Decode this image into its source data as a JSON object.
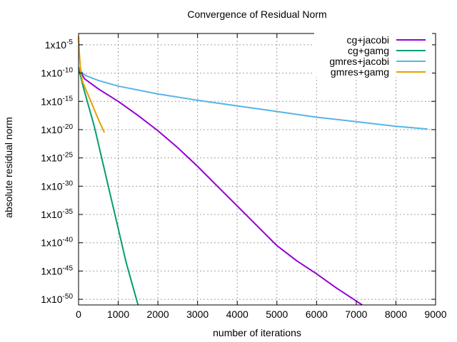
{
  "chart_data": {
    "type": "line",
    "title": "Convergence of Residual Norm",
    "xlabel": "number of iterations",
    "ylabel": "absolute residual norm",
    "xlim": [
      0,
      9000
    ],
    "ylim_exponent": [
      -51,
      -3
    ],
    "y_scale": "log10",
    "x_ticks": [
      {
        "value": 0,
        "label": "0"
      },
      {
        "value": 1000,
        "label": "1000"
      },
      {
        "value": 2000,
        "label": "2000"
      },
      {
        "value": 3000,
        "label": "3000"
      },
      {
        "value": 4000,
        "label": "4000"
      },
      {
        "value": 5000,
        "label": "5000"
      },
      {
        "value": 6000,
        "label": "6000"
      },
      {
        "value": 7000,
        "label": "7000"
      },
      {
        "value": 8000,
        "label": "8000"
      },
      {
        "value": 9000,
        "label": "9000"
      }
    ],
    "y_ticks": [
      {
        "exp": -5,
        "base": "1x10",
        "sup": "-5"
      },
      {
        "exp": -10,
        "base": "1x10",
        "sup": "-10"
      },
      {
        "exp": -15,
        "base": "1x10",
        "sup": "-15"
      },
      {
        "exp": -20,
        "base": "1x10",
        "sup": "-20"
      },
      {
        "exp": -25,
        "base": "1x10",
        "sup": "-25"
      },
      {
        "exp": -30,
        "base": "1x10",
        "sup": "-30"
      },
      {
        "exp": -35,
        "base": "1x10",
        "sup": "-35"
      },
      {
        "exp": -40,
        "base": "1x10",
        "sup": "-40"
      },
      {
        "exp": -45,
        "base": "1x10",
        "sup": "-45"
      },
      {
        "exp": -50,
        "base": "1x10",
        "sup": "-50"
      }
    ],
    "grid": true,
    "legend_position": "top-right",
    "series": [
      {
        "name": "cg+jacobi",
        "color": "#9400d3",
        "points": [
          [
            0,
            -9
          ],
          [
            150,
            -11
          ],
          [
            500,
            -12.8
          ],
          [
            1000,
            -15
          ],
          [
            1500,
            -17.5
          ],
          [
            2000,
            -20.2
          ],
          [
            2500,
            -23.2
          ],
          [
            3000,
            -26.5
          ],
          [
            3500,
            -30
          ],
          [
            4000,
            -33.5
          ],
          [
            4500,
            -37
          ],
          [
            5000,
            -40.5
          ],
          [
            5500,
            -43.2
          ],
          [
            6000,
            -45.5
          ],
          [
            6500,
            -48
          ],
          [
            7000,
            -50.3
          ],
          [
            7150,
            -51
          ]
        ]
      },
      {
        "name": "cg+gamg",
        "color": "#009e73",
        "points": [
          [
            0,
            -9
          ],
          [
            100,
            -12
          ],
          [
            200,
            -14.5
          ],
          [
            300,
            -17
          ],
          [
            400,
            -19.5
          ],
          [
            500,
            -22.5
          ],
          [
            600,
            -25.5
          ],
          [
            700,
            -28.5
          ],
          [
            800,
            -31.5
          ],
          [
            900,
            -34.5
          ],
          [
            1000,
            -37.5
          ],
          [
            1100,
            -40.5
          ],
          [
            1200,
            -43.5
          ],
          [
            1300,
            -46
          ],
          [
            1400,
            -48.5
          ],
          [
            1500,
            -51
          ]
        ]
      },
      {
        "name": "gmres+jacobi",
        "color": "#56b4e9",
        "points": [
          [
            0,
            -9
          ],
          [
            100,
            -10
          ],
          [
            200,
            -10.5
          ],
          [
            500,
            -11.3
          ],
          [
            1000,
            -12.3
          ],
          [
            2000,
            -13.7
          ],
          [
            3000,
            -14.8
          ],
          [
            4000,
            -15.8
          ],
          [
            5000,
            -16.8
          ],
          [
            6000,
            -17.8
          ],
          [
            7000,
            -18.6
          ],
          [
            8000,
            -19.4
          ],
          [
            8800,
            -19.9
          ]
        ]
      },
      {
        "name": "gmres+gamg",
        "color": "#e69f00",
        "points": [
          [
            0,
            -3.5
          ],
          [
            20,
            -6.5
          ],
          [
            60,
            -10
          ],
          [
            100,
            -11.5
          ],
          [
            200,
            -13.2
          ],
          [
            300,
            -14.8
          ],
          [
            400,
            -16.5
          ],
          [
            500,
            -18.2
          ],
          [
            650,
            -20.5
          ]
        ]
      }
    ]
  }
}
